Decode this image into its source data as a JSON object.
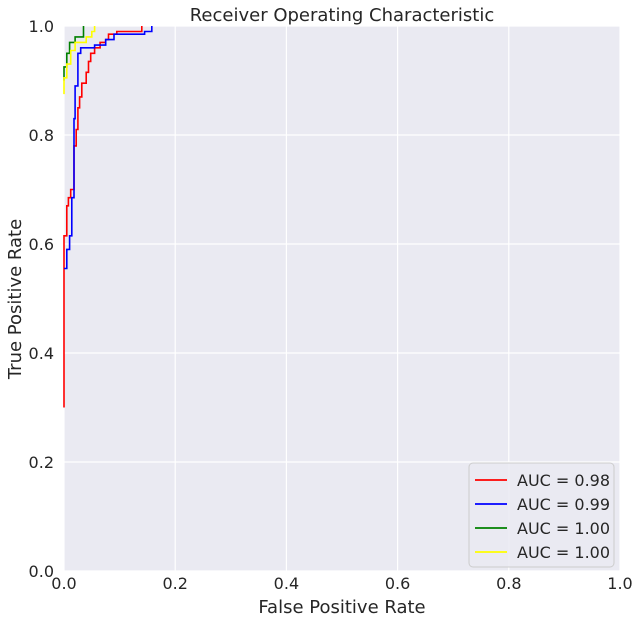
{
  "chart_data": {
    "type": "line",
    "title": "Receiver Operating Characteristic",
    "xlabel": "False Positive Rate",
    "ylabel": "True Positive Rate",
    "xlim": [
      0,
      1
    ],
    "ylim": [
      0,
      1
    ],
    "xticks": [
      "0.0",
      "0.2",
      "0.4",
      "0.6",
      "0.8",
      "1.0"
    ],
    "yticks": [
      "0.0",
      "0.2",
      "0.4",
      "0.6",
      "0.8",
      "1.0"
    ],
    "grid": true,
    "background": "#eaeaf2",
    "legend_position": "lower-right",
    "series": [
      {
        "name": "AUC = 0.98",
        "color": "#ff0000",
        "x": [
          0,
          0,
          0.005,
          0.005,
          0.008,
          0.008,
          0.012,
          0.012,
          0.018,
          0.018,
          0.022,
          0.022,
          0.025,
          0.025,
          0.028,
          0.028,
          0.032,
          0.032,
          0.04,
          0.04,
          0.044,
          0.044,
          0.048,
          0.048,
          0.055,
          0.055,
          0.065,
          0.065,
          0.075,
          0.075,
          0.08,
          0.08,
          0.095,
          0.095,
          0.14,
          0.14
        ],
        "y": [
          0.3,
          0.615,
          0.615,
          0.67,
          0.67,
          0.685,
          0.685,
          0.7,
          0.7,
          0.78,
          0.78,
          0.81,
          0.81,
          0.85,
          0.85,
          0.87,
          0.87,
          0.895,
          0.895,
          0.915,
          0.915,
          0.935,
          0.935,
          0.95,
          0.95,
          0.96,
          0.96,
          0.97,
          0.97,
          0.975,
          0.975,
          0.985,
          0.985,
          0.99,
          0.99,
          1.0
        ]
      },
      {
        "name": "AUC = 0.99",
        "color": "#0000ff",
        "x": [
          0,
          0.005,
          0.005,
          0.01,
          0.01,
          0.014,
          0.014,
          0.018,
          0.018,
          0.02,
          0.02,
          0.025,
          0.025,
          0.03,
          0.03,
          0.055,
          0.055,
          0.075,
          0.075,
          0.09,
          0.09,
          0.145,
          0.145,
          0.158,
          0.158
        ],
        "y": [
          0.555,
          0.555,
          0.59,
          0.59,
          0.615,
          0.615,
          0.685,
          0.685,
          0.83,
          0.83,
          0.89,
          0.89,
          0.95,
          0.95,
          0.96,
          0.96,
          0.965,
          0.965,
          0.975,
          0.975,
          0.985,
          0.985,
          0.99,
          0.99,
          1.0
        ]
      },
      {
        "name": "AUC = 1.00",
        "color": "#008000",
        "x": [
          0,
          0,
          0.005,
          0.005,
          0.01,
          0.01,
          0.02,
          0.02,
          0.035,
          0.035
        ],
        "y": [
          0.9,
          0.925,
          0.925,
          0.95,
          0.95,
          0.97,
          0.97,
          0.98,
          0.98,
          1.0
        ]
      },
      {
        "name": "AUC = 1.00",
        "color": "#ffff00",
        "x": [
          0,
          0,
          0.005,
          0.005,
          0.012,
          0.012,
          0.02,
          0.02,
          0.04,
          0.04,
          0.05,
          0.05,
          0.055,
          0.055
        ],
        "y": [
          0.875,
          0.905,
          0.905,
          0.93,
          0.93,
          0.955,
          0.955,
          0.97,
          0.97,
          0.98,
          0.98,
          0.99,
          0.99,
          1.0
        ]
      }
    ]
  }
}
